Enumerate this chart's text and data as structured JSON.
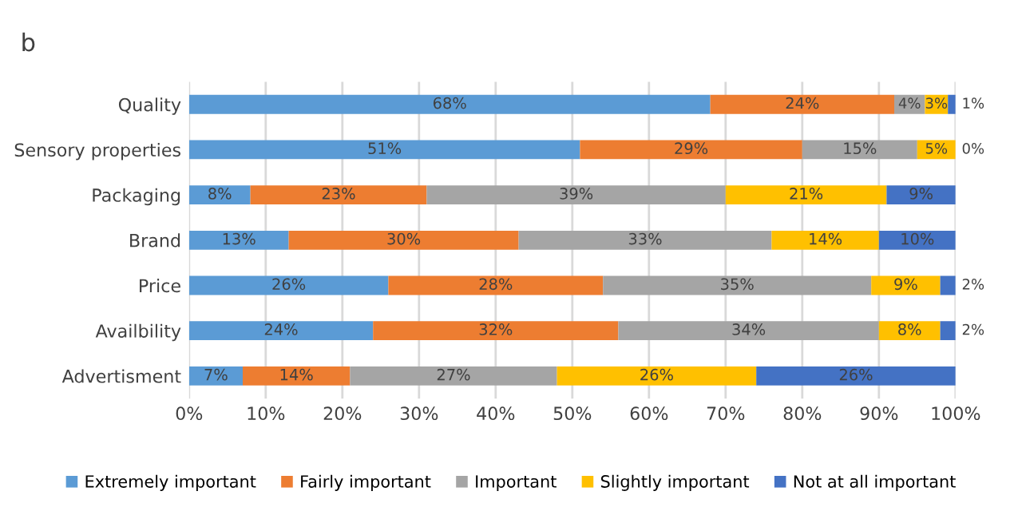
{
  "chart_data": {
    "type": "bar",
    "orientation": "horizontal",
    "stacked": true,
    "title": "b",
    "categories": [
      "Quality",
      "Sensory properties",
      "Packaging",
      "Brand",
      "Price",
      "Availbility",
      "Advertisment"
    ],
    "series": [
      {
        "name": "Extremely important",
        "color": "#5b9bd5",
        "values": [
          68,
          51,
          8,
          13,
          26,
          24,
          7
        ],
        "value_labels": [
          "68%",
          "51%",
          "8%",
          "13%",
          "26%",
          "24%",
          "7%"
        ]
      },
      {
        "name": "Fairly important",
        "color": "#ed7d31",
        "values": [
          24,
          29,
          23,
          30,
          28,
          32,
          14
        ],
        "value_labels": [
          "24%",
          "29%",
          "23%",
          "30%",
          "28%",
          "32%",
          "14%"
        ]
      },
      {
        "name": "Important",
        "color": "#a5a5a5",
        "values": [
          4,
          15,
          39,
          33,
          35,
          34,
          27
        ],
        "value_labels": [
          "4%",
          "15%",
          "39%",
          "33%",
          "35%",
          "34%",
          "27%"
        ]
      },
      {
        "name": "Slightly important",
        "color": "#ffc000",
        "values": [
          3,
          5,
          21,
          14,
          9,
          8,
          26
        ],
        "value_labels": [
          "3%",
          "5%",
          "21%",
          "14%",
          "9%",
          "8%",
          "26%"
        ]
      },
      {
        "name": "Not at all important",
        "color": "#4472c4",
        "values": [
          1,
          0,
          9,
          10,
          2,
          2,
          26
        ],
        "value_labels": [
          "1%",
          "0%",
          "9%",
          "10%",
          "2%",
          "2%",
          "26%"
        ]
      }
    ],
    "xlim": [
      0,
      100
    ],
    "xticks": [
      {
        "value": 0,
        "label": "0%"
      },
      {
        "value": 10,
        "label": "10%"
      },
      {
        "value": 20,
        "label": "20%"
      },
      {
        "value": 30,
        "label": "30%"
      },
      {
        "value": 40,
        "label": "40%"
      },
      {
        "value": 50,
        "label": "50%"
      },
      {
        "value": 60,
        "label": "60%"
      },
      {
        "value": 70,
        "label": "70%"
      },
      {
        "value": 80,
        "label": "80%"
      },
      {
        "value": 90,
        "label": "90%"
      },
      {
        "value": 100,
        "label": "100%"
      }
    ],
    "grid": "x",
    "legend": "bottom"
  }
}
